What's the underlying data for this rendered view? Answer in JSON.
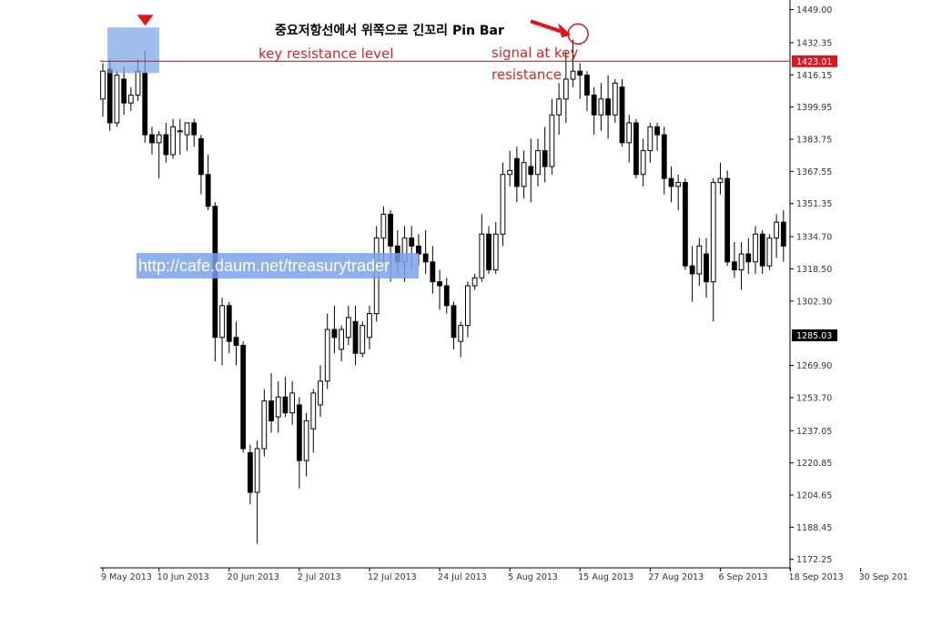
{
  "chart_data": {
    "type": "candlestick",
    "title": "중요저항선에서 위쪽으로 긴꼬리 Pin Bar",
    "y_ticks": [
      1449.0,
      1432.35,
      1416.15,
      1399.95,
      1383.75,
      1367.55,
      1351.35,
      1334.7,
      1318.5,
      1302.3,
      1269.9,
      1253.7,
      1237.05,
      1220.85,
      1204.65,
      1188.45,
      1172.25
    ],
    "ylim": [
      1168,
      1452
    ],
    "price_markers": [
      {
        "value": 1423.01,
        "label": "1423.01",
        "color": "#e0141e"
      },
      {
        "value": 1285.03,
        "label": "1285.03",
        "color": "#000000"
      }
    ],
    "resistance_level": 1423.01,
    "x_date_labels": [
      {
        "index": 0,
        "label": "9 May 2013"
      },
      {
        "index": 8,
        "label": "10 Jun 2013"
      },
      {
        "index": 18,
        "label": "20 Jun 2013"
      },
      {
        "index": 28,
        "label": "2 Jul 2013"
      },
      {
        "index": 38,
        "label": "12 Jul 2013"
      },
      {
        "index": 48,
        "label": "24 Jul 2013"
      },
      {
        "index": 58,
        "label": "5 Aug 2013"
      },
      {
        "index": 68,
        "label": "15 Aug 2013"
      },
      {
        "index": 78,
        "label": "27 Aug 2013"
      },
      {
        "index": 88,
        "label": "6 Sep 2013"
      },
      {
        "index": 98,
        "label": "18 Sep 2013"
      },
      {
        "index": 108,
        "label": "30 Sep 201"
      }
    ],
    "candles": [
      {
        "o": 1404,
        "h": 1422,
        "l": 1395,
        "c": 1418
      },
      {
        "o": 1419,
        "h": 1424,
        "l": 1388,
        "c": 1392
      },
      {
        "o": 1392,
        "h": 1418,
        "l": 1390,
        "c": 1416
      },
      {
        "o": 1414,
        "h": 1420,
        "l": 1396,
        "c": 1402
      },
      {
        "o": 1402,
        "h": 1410,
        "l": 1398,
        "c": 1406
      },
      {
        "o": 1406,
        "h": 1424,
        "l": 1403,
        "c": 1418
      },
      {
        "o": 1417,
        "h": 1428,
        "l": 1382,
        "c": 1386
      },
      {
        "o": 1386,
        "h": 1390,
        "l": 1376,
        "c": 1382
      },
      {
        "o": 1382,
        "h": 1388,
        "l": 1364,
        "c": 1386
      },
      {
        "o": 1386,
        "h": 1392,
        "l": 1372,
        "c": 1376
      },
      {
        "o": 1376,
        "h": 1394,
        "l": 1374,
        "c": 1390
      },
      {
        "o": 1388,
        "h": 1394,
        "l": 1376,
        "c": 1388
      },
      {
        "o": 1386,
        "h": 1392,
        "l": 1378,
        "c": 1392
      },
      {
        "o": 1392,
        "h": 1394,
        "l": 1380,
        "c": 1386
      },
      {
        "o": 1384,
        "h": 1386,
        "l": 1356,
        "c": 1366
      },
      {
        "o": 1366,
        "h": 1376,
        "l": 1348,
        "c": 1350
      },
      {
        "o": 1350,
        "h": 1352,
        "l": 1272,
        "c": 1284
      },
      {
        "o": 1284,
        "h": 1304,
        "l": 1270,
        "c": 1300
      },
      {
        "o": 1300,
        "h": 1302,
        "l": 1276,
        "c": 1282
      },
      {
        "o": 1284,
        "h": 1292,
        "l": 1270,
        "c": 1280
      },
      {
        "o": 1280,
        "h": 1282,
        "l": 1226,
        "c": 1228
      },
      {
        "o": 1226,
        "h": 1230,
        "l": 1200,
        "c": 1206
      },
      {
        "o": 1206,
        "h": 1232,
        "l": 1180,
        "c": 1228
      },
      {
        "o": 1228,
        "h": 1258,
        "l": 1224,
        "c": 1252
      },
      {
        "o": 1252,
        "h": 1266,
        "l": 1236,
        "c": 1242
      },
      {
        "o": 1244,
        "h": 1262,
        "l": 1236,
        "c": 1254
      },
      {
        "o": 1254,
        "h": 1264,
        "l": 1244,
        "c": 1246
      },
      {
        "o": 1246,
        "h": 1262,
        "l": 1240,
        "c": 1256
      },
      {
        "o": 1250,
        "h": 1254,
        "l": 1208,
        "c": 1222
      },
      {
        "o": 1222,
        "h": 1246,
        "l": 1214,
        "c": 1242
      },
      {
        "o": 1238,
        "h": 1258,
        "l": 1226,
        "c": 1256
      },
      {
        "o": 1250,
        "h": 1270,
        "l": 1244,
        "c": 1262
      },
      {
        "o": 1262,
        "h": 1296,
        "l": 1258,
        "c": 1288
      },
      {
        "o": 1288,
        "h": 1300,
        "l": 1276,
        "c": 1284
      },
      {
        "o": 1278,
        "h": 1290,
        "l": 1272,
        "c": 1288
      },
      {
        "o": 1284,
        "h": 1300,
        "l": 1280,
        "c": 1294
      },
      {
        "o": 1292,
        "h": 1300,
        "l": 1270,
        "c": 1276
      },
      {
        "o": 1276,
        "h": 1292,
        "l": 1274,
        "c": 1290
      },
      {
        "o": 1284,
        "h": 1300,
        "l": 1278,
        "c": 1296
      },
      {
        "o": 1296,
        "h": 1340,
        "l": 1292,
        "c": 1334
      },
      {
        "o": 1334,
        "h": 1350,
        "l": 1322,
        "c": 1346
      },
      {
        "o": 1346,
        "h": 1348,
        "l": 1312,
        "c": 1330
      },
      {
        "o": 1330,
        "h": 1338,
        "l": 1316,
        "c": 1322
      },
      {
        "o": 1322,
        "h": 1340,
        "l": 1312,
        "c": 1334
      },
      {
        "o": 1334,
        "h": 1340,
        "l": 1318,
        "c": 1330
      },
      {
        "o": 1330,
        "h": 1336,
        "l": 1320,
        "c": 1326
      },
      {
        "o": 1326,
        "h": 1338,
        "l": 1316,
        "c": 1322
      },
      {
        "o": 1322,
        "h": 1330,
        "l": 1306,
        "c": 1312
      },
      {
        "o": 1312,
        "h": 1318,
        "l": 1298,
        "c": 1310
      },
      {
        "o": 1310,
        "h": 1314,
        "l": 1296,
        "c": 1300
      },
      {
        "o": 1300,
        "h": 1302,
        "l": 1278,
        "c": 1284
      },
      {
        "o": 1282,
        "h": 1292,
        "l": 1274,
        "c": 1290
      },
      {
        "o": 1290,
        "h": 1312,
        "l": 1284,
        "c": 1310
      },
      {
        "o": 1310,
        "h": 1316,
        "l": 1308,
        "c": 1314
      },
      {
        "o": 1314,
        "h": 1346,
        "l": 1312,
        "c": 1336
      },
      {
        "o": 1336,
        "h": 1340,
        "l": 1316,
        "c": 1318
      },
      {
        "o": 1318,
        "h": 1342,
        "l": 1316,
        "c": 1336
      },
      {
        "o": 1336,
        "h": 1372,
        "l": 1330,
        "c": 1366
      },
      {
        "o": 1366,
        "h": 1378,
        "l": 1360,
        "c": 1368
      },
      {
        "o": 1374,
        "h": 1380,
        "l": 1352,
        "c": 1360
      },
      {
        "o": 1360,
        "h": 1378,
        "l": 1354,
        "c": 1372
      },
      {
        "o": 1370,
        "h": 1384,
        "l": 1352,
        "c": 1366
      },
      {
        "o": 1366,
        "h": 1384,
        "l": 1360,
        "c": 1378
      },
      {
        "o": 1378,
        "h": 1390,
        "l": 1362,
        "c": 1370
      },
      {
        "o": 1370,
        "h": 1404,
        "l": 1366,
        "c": 1396
      },
      {
        "o": 1396,
        "h": 1412,
        "l": 1386,
        "c": 1404
      },
      {
        "o": 1404,
        "h": 1428,
        "l": 1392,
        "c": 1414
      },
      {
        "o": 1414,
        "h": 1434,
        "l": 1410,
        "c": 1418
      },
      {
        "o": 1418,
        "h": 1422,
        "l": 1404,
        "c": 1416
      },
      {
        "o": 1416,
        "h": 1418,
        "l": 1398,
        "c": 1406
      },
      {
        "o": 1406,
        "h": 1410,
        "l": 1386,
        "c": 1396
      }
    ],
    "candles_tail": [
      {
        "o": 1396,
        "h": 1412,
        "l": 1388,
        "c": 1404
      },
      {
        "o": 1404,
        "h": 1416,
        "l": 1384,
        "c": 1396
      },
      {
        "o": 1396,
        "h": 1414,
        "l": 1392,
        "c": 1412
      },
      {
        "o": 1410,
        "h": 1414,
        "l": 1380,
        "c": 1382
      },
      {
        "o": 1382,
        "h": 1396,
        "l": 1372,
        "c": 1392
      },
      {
        "o": 1392,
        "h": 1394,
        "l": 1364,
        "c": 1366
      },
      {
        "o": 1366,
        "h": 1384,
        "l": 1360,
        "c": 1378
      },
      {
        "o": 1378,
        "h": 1392,
        "l": 1372,
        "c": 1390
      },
      {
        "o": 1390,
        "h": 1392,
        "l": 1378,
        "c": 1386
      },
      {
        "o": 1386,
        "h": 1390,
        "l": 1356,
        "c": 1364
      },
      {
        "o": 1364,
        "h": 1370,
        "l": 1352,
        "c": 1360
      },
      {
        "o": 1360,
        "h": 1366,
        "l": 1348,
        "c": 1362
      },
      {
        "o": 1362,
        "h": 1364,
        "l": 1318,
        "c": 1320
      },
      {
        "o": 1320,
        "h": 1330,
        "l": 1302,
        "c": 1316
      },
      {
        "o": 1316,
        "h": 1334,
        "l": 1310,
        "c": 1330
      },
      {
        "o": 1326,
        "h": 1334,
        "l": 1304,
        "c": 1312
      },
      {
        "o": 1312,
        "h": 1364,
        "l": 1292,
        "c": 1362
      },
      {
        "o": 1362,
        "h": 1372,
        "l": 1356,
        "c": 1364
      },
      {
        "o": 1364,
        "h": 1368,
        "l": 1320,
        "c": 1322
      },
      {
        "o": 1322,
        "h": 1332,
        "l": 1314,
        "c": 1318
      },
      {
        "o": 1318,
        "h": 1332,
        "l": 1308,
        "c": 1326
      },
      {
        "o": 1326,
        "h": 1334,
        "l": 1316,
        "c": 1322
      },
      {
        "o": 1322,
        "h": 1340,
        "l": 1316,
        "c": 1336
      },
      {
        "o": 1336,
        "h": 1338,
        "l": 1316,
        "c": 1320
      },
      {
        "o": 1320,
        "h": 1336,
        "l": 1318,
        "c": 1334
      },
      {
        "o": 1334,
        "h": 1346,
        "l": 1324,
        "c": 1342
      },
      {
        "o": 1342,
        "h": 1348,
        "l": 1322,
        "c": 1330
      }
    ],
    "annotations": {
      "key_resistance": "key resistance level",
      "signal_line1": "signal at key",
      "signal_line2": "resistance",
      "watermark": "http://cafe.daum.net/treasurytrader"
    },
    "colors": {
      "bull_fill": "#ffffff",
      "bear_fill": "#000000",
      "candle_stroke": "#000000",
      "resistance_line": "#e0141e",
      "annotation_red": "#d62728",
      "highlight_box": "#7aa3e8",
      "watermark_box": "#7aa3e8"
    }
  }
}
